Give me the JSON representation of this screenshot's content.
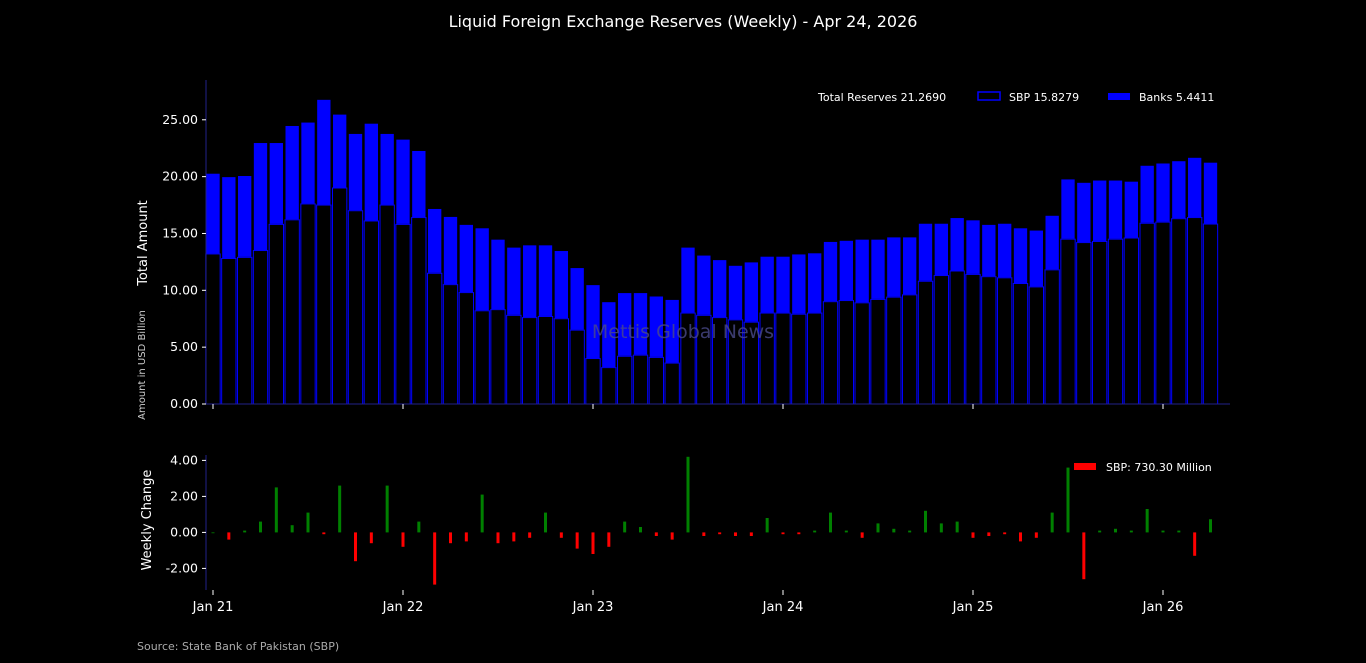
{
  "chart_data": [
    {
      "type": "bar",
      "title": "Liquid Foreign Exchange Reserves (Weekly) - Apr 24, 2026",
      "ylabel": "Total Amount",
      "ylabel_sub": "Amount in USD Billion",
      "ylim": [
        0,
        28.5
      ],
      "yticks": [
        "0.00",
        "5.00",
        "10.00",
        "15.00",
        "20.00",
        "25.00"
      ],
      "ytick_values": [
        0,
        5,
        10,
        15,
        20,
        25
      ],
      "xticks": [
        "Jan 21",
        "Jan 22",
        "Jan 23",
        "Jan 24",
        "Jan 25",
        "Jan 26"
      ],
      "x_start": "Jan 2021",
      "x_step": "month",
      "legend": [
        "Total Reserves 21.2690",
        "SBP 15.8279",
        "Banks 5.4411"
      ],
      "legend_position": "top-right",
      "colors": {
        "sbp_edge": "#0000ff",
        "sbp_fill": "#000000",
        "banks": "#0000ff"
      },
      "series": [
        {
          "name": "SBP",
          "values": [
            13.2,
            12.8,
            12.9,
            13.5,
            15.8,
            16.2,
            17.6,
            17.5,
            19.0,
            17.0,
            16.1,
            17.5,
            15.8,
            16.4,
            11.5,
            10.5,
            9.8,
            8.2,
            8.3,
            7.8,
            7.6,
            7.7,
            7.5,
            6.5,
            4.0,
            3.2,
            4.2,
            4.3,
            4.1,
            3.6,
            8.0,
            7.8,
            7.6,
            7.4,
            7.2,
            8.0,
            8.0,
            7.9,
            8.0,
            9.0,
            9.1,
            8.9,
            9.2,
            9.4,
            9.6,
            10.8,
            11.3,
            11.7,
            11.4,
            11.2,
            11.1,
            10.6,
            10.3,
            11.8,
            14.5,
            14.2,
            14.3,
            14.5,
            14.6,
            15.9,
            16.0,
            16.3,
            16.4,
            15.83
          ]
        },
        {
          "name": "Total",
          "values": [
            20.3,
            20.0,
            20.1,
            23.0,
            23.0,
            24.5,
            24.8,
            26.8,
            25.5,
            23.8,
            24.7,
            23.8,
            23.3,
            22.3,
            17.2,
            16.5,
            15.8,
            15.5,
            14.5,
            13.8,
            14.0,
            14.0,
            13.5,
            12.0,
            10.5,
            9.0,
            9.8,
            9.8,
            9.5,
            9.2,
            13.8,
            13.1,
            12.7,
            12.2,
            12.5,
            13.0,
            13.0,
            13.2,
            13.3,
            14.3,
            14.4,
            14.5,
            14.5,
            14.7,
            14.7,
            15.9,
            15.9,
            16.4,
            16.2,
            15.8,
            15.9,
            15.5,
            15.3,
            16.6,
            19.8,
            19.5,
            19.7,
            19.7,
            19.6,
            21.0,
            21.2,
            21.4,
            21.7,
            21.27
          ]
        }
      ],
      "watermark": "Mettis Global News"
    },
    {
      "type": "bar",
      "ylabel": "Weekly Change",
      "ylim": [
        -3.2,
        4.3
      ],
      "yticks": [
        "-2.00",
        "0.00",
        "2.00",
        "4.00"
      ],
      "ytick_values": [
        -2,
        0,
        2,
        4
      ],
      "legend": [
        "SBP: 730.30 Million"
      ],
      "legend_position": "top-right",
      "colors": {
        "positive": "#008000",
        "negative": "#ff0000",
        "legend": "#ff0000"
      },
      "values": [
        0,
        -0.4,
        0.1,
        0.6,
        2.5,
        0.4,
        1.1,
        -0.1,
        2.6,
        -1.6,
        -0.6,
        2.6,
        -0.8,
        0.6,
        -2.9,
        -0.6,
        -0.5,
        2.1,
        -0.6,
        -0.5,
        -0.3,
        1.1,
        -0.3,
        -0.9,
        -1.2,
        -0.8,
        0.6,
        0.3,
        -0.2,
        -0.4,
        4.2,
        -0.2,
        -0.1,
        -0.2,
        -0.2,
        0.8,
        -0.1,
        -0.1,
        0.1,
        1.1,
        0.1,
        -0.3,
        0.5,
        0.2,
        0.1,
        1.2,
        0.5,
        0.6,
        -0.3,
        -0.2,
        -0.1,
        -0.5,
        -0.3,
        1.1,
        3.6,
        -2.6,
        0.1,
        0.2,
        0.1,
        1.3,
        0.1,
        0.1,
        -1.3,
        0.73
      ]
    }
  ],
  "source": "Source: State Bank of Pakistan (SBP)"
}
